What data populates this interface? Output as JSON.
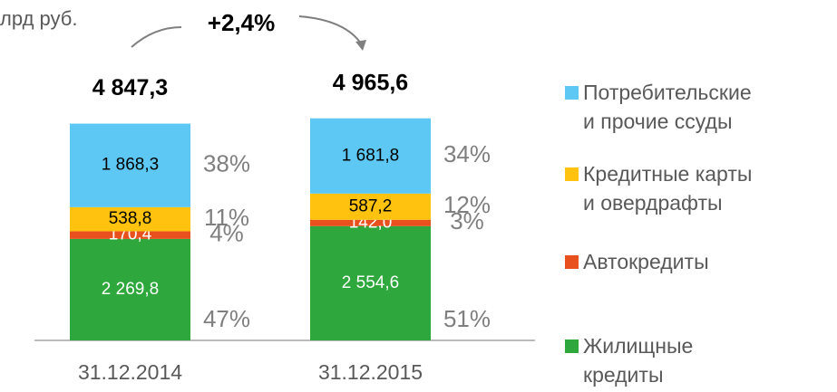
{
  "chart_data": {
    "type": "stacked_bar",
    "unit_label": "лрд руб.",
    "growth_label": "+2,4%",
    "categories": [
      "31.12.2014",
      "31.12.2015"
    ],
    "totals": [
      4847.3,
      4965.6
    ],
    "total_labels": [
      "4 847,3",
      "4 965,6"
    ],
    "ylim": [
      0,
      5000
    ],
    "series": [
      {
        "name": "Жилищные\nкредиты",
        "color": "#2ea83c",
        "values": [
          2269.8,
          2554.6
        ],
        "value_labels": [
          "2 269,8",
          "2 554,6"
        ],
        "share_labels": [
          "47%",
          "51%"
        ]
      },
      {
        "name": "Автокредиты",
        "color": "#e8501e",
        "values": [
          170.4,
          142.0
        ],
        "value_labels": [
          "170,4",
          "142,0"
        ],
        "share_labels": [
          "4%",
          "3%"
        ]
      },
      {
        "name": "Кредитные карты\nи овердрафты",
        "color": "#ffc20e",
        "values": [
          538.8,
          587.2
        ],
        "value_labels": [
          "538,8",
          "587,2"
        ],
        "share_labels": [
          "11%",
          "12%"
        ]
      },
      {
        "name": "Потребительские\nи прочие ссуды",
        "color": "#5ec8f5",
        "values": [
          1868.3,
          1681.8
        ],
        "value_labels": [
          "1 868,3",
          "1 681,8"
        ],
        "share_labels": [
          "38%",
          "34%"
        ]
      }
    ]
  }
}
